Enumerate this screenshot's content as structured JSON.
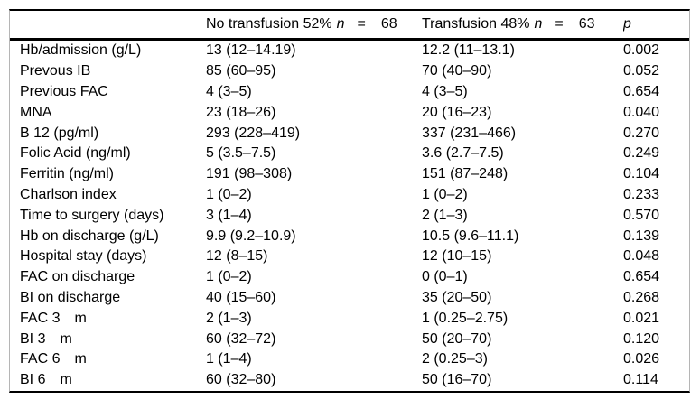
{
  "colors": {
    "background": "#ffffff",
    "text": "#000000",
    "horizontal_rule": "#000000",
    "side_rule": "#b5b5b5"
  },
  "table": {
    "header": {
      "variable_label": "",
      "no_transfusion": {
        "label": "No transfusion 52%",
        "n_symbol": "n",
        "equals": "=",
        "n_value": "68"
      },
      "transfusion": {
        "label": "Transfusion 48%",
        "n_symbol": "n",
        "equals": "=",
        "n_value": "63"
      },
      "p_label": "p"
    },
    "rows": [
      {
        "label": "Hb/admission (g/L)",
        "no_transfusion": "13 (12–14.19)",
        "transfusion": "12.2 (11–13.1)",
        "p": "0.002"
      },
      {
        "label": "Prevous IB",
        "no_transfusion": "85 (60–95)",
        "transfusion": "70 (40–90)",
        "p": "0.052"
      },
      {
        "label": "Previous FAC",
        "no_transfusion": "4 (3–5)",
        "transfusion": "4 (3–5)",
        "p": "0.654"
      },
      {
        "label": "MNA",
        "no_transfusion": "23 (18–26)",
        "transfusion": "20 (16–23)",
        "p": "0.040"
      },
      {
        "label": "B 12 (pg/ml)",
        "no_transfusion": "293 (228–419)",
        "transfusion": "337 (231–466)",
        "p": "0.270"
      },
      {
        "label": "Folic Acid (ng/ml)",
        "no_transfusion": "5 (3.5–7.5)",
        "transfusion": "3.6 (2.7–7.5)",
        "p": "0.249"
      },
      {
        "label": "Ferritin (ng/ml)",
        "no_transfusion": "191 (98–308)",
        "transfusion": "151 (87–248)",
        "p": "0.104"
      },
      {
        "label": "Charlson index",
        "no_transfusion": "1 (0–2)",
        "transfusion": "1 (0–2)",
        "p": "0.233"
      },
      {
        "label": "Time to surgery (days)",
        "no_transfusion": "3 (1–4)",
        "transfusion": "2 (1–3)",
        "p": "0.570"
      },
      {
        "label": "Hb on discharge (g/L)",
        "no_transfusion": "9.9 (9.2–10.9)",
        "transfusion": "10.5 (9.6–11.1)",
        "p": "0.139"
      },
      {
        "label": "Hospital stay (days)",
        "no_transfusion": "12 (8–15)",
        "transfusion": "12 (10–15)",
        "p": "0.048"
      },
      {
        "label": "FAC on discharge",
        "no_transfusion": "1 (0–2)",
        "transfusion": "0 (0–1)",
        "p": "0.654"
      },
      {
        "label": "BI on discharge",
        "no_transfusion": "40 (15–60)",
        "transfusion": "35 (20–50)",
        "p": "0.268"
      },
      {
        "label": "FAC 3 m",
        "no_transfusion": "2 (1–3)",
        "transfusion": "1 (0.25–2.75)",
        "p": "0.021"
      },
      {
        "label": "BI 3 m",
        "no_transfusion": "60 (32–72)",
        "transfusion": "50 (20–70)",
        "p": "0.120"
      },
      {
        "label": "FAC 6 m",
        "no_transfusion": "1 (1–4)",
        "transfusion": "2 (0.25–3)",
        "p": "0.026"
      },
      {
        "label": "BI 6 m",
        "no_transfusion": "60 (32–80)",
        "transfusion": "50 (16–70)",
        "p": "0.114"
      }
    ]
  }
}
